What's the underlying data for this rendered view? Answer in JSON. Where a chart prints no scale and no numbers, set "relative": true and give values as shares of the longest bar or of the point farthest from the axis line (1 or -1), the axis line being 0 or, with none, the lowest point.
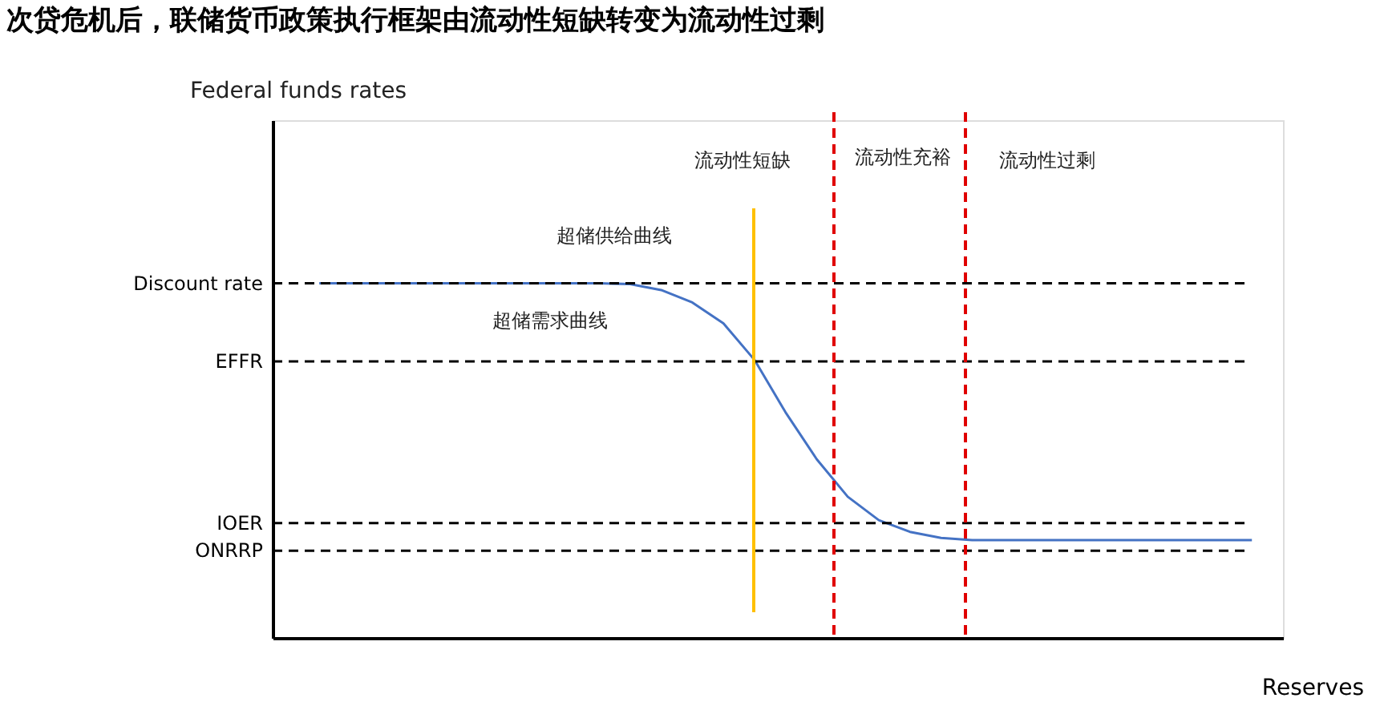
{
  "chart_data": {
    "type": "line",
    "relative": true,
    "title": "次贷危机后，联储货币政策执行框架由流动性短缺转变为流动性过剩",
    "xlabel": "Reserves",
    "categories": [
      null,
      null,
      null,
      null,
      null,
      null,
      null,
      null,
      null,
      null,
      null,
      null,
      null,
      null,
      null,
      null,
      null,
      null,
      null,
      null,
      null,
      null,
      null,
      null,
      null,
      null,
      null,
      null,
      null,
      null,
      null
    ],
    "series": [
      {
        "color": "#4472c4",
        "values": [
          1,
          1,
          1,
          1,
          1,
          1,
          1,
          1,
          1,
          1,
          0.998,
          0.981,
          0.946,
          0.887,
          0.784,
          0.636,
          0.504,
          0.398,
          0.332,
          0.299,
          0.282,
          0.276,
          0.276,
          0.276,
          0.276,
          0.276,
          0.276,
          0.276,
          0.276,
          0.276,
          0.276
        ]
      }
    ],
    "ref_lines": [
      {
        "axis": "y",
        "value": 1,
        "label": "Discount rate",
        "color": "#000000",
        "line_style": "dashed"
      },
      {
        "axis": "y",
        "value": 0.78,
        "label": "EFFR",
        "color": "#000000",
        "line_style": "dashed"
      },
      {
        "axis": "y",
        "value": 0.324,
        "label": "IOER",
        "color": "#000000",
        "line_style": "dashed"
      },
      {
        "axis": "y",
        "value": 0.246,
        "label": "ONRRP",
        "color": "#000000",
        "line_style": "dashed"
      }
    ],
    "annotations": [
      "Federal funds rates",
      "流动性短缺",
      "流动性充裕",
      "流动性过剩",
      "超储供给曲线",
      "超储需求曲线"
    ],
    "marker": "none",
    "line_style": "solid"
  }
}
